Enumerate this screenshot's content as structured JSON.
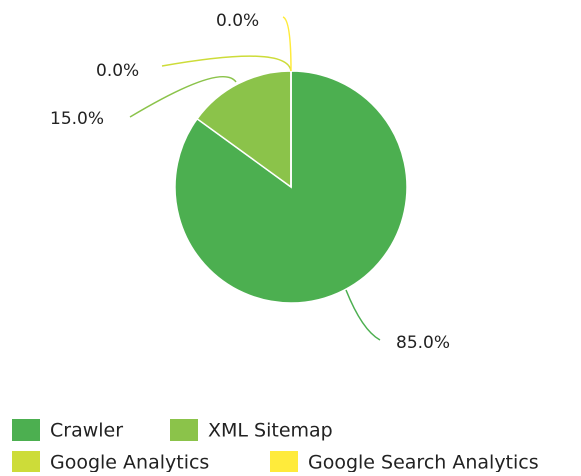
{
  "chart_data": {
    "type": "pie",
    "categories": [
      "Crawler",
      "XML Sitemap",
      "Google Analytics",
      "Google Search Analytics"
    ],
    "values": [
      85.0,
      15.0,
      0.0,
      0.0
    ],
    "value_labels": [
      "85.0%",
      "15.0%",
      "0.0%",
      "0.0%"
    ],
    "colors": [
      "#4caf50",
      "#8bc34a",
      "#cddc39",
      "#ffeb3b"
    ],
    "legend": "bottom"
  }
}
